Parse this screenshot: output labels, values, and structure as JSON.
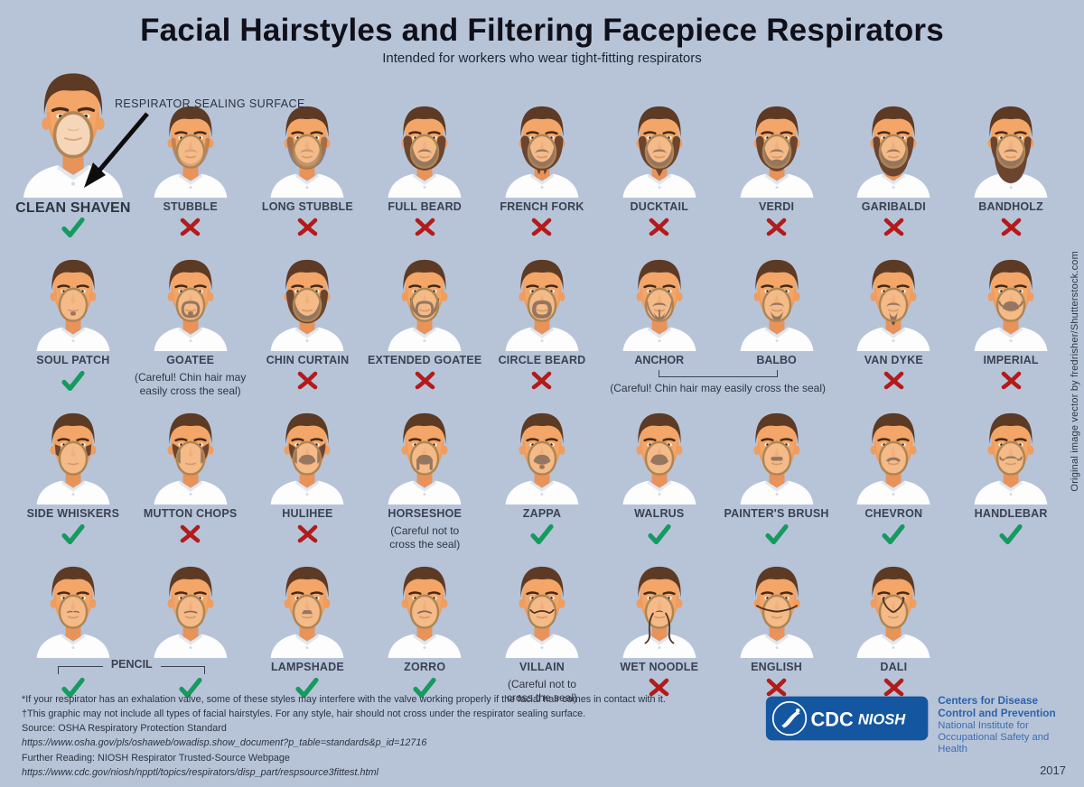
{
  "title": "Facial Hairstyles and Filtering Facepiece Respirators",
  "subtitle": "Intended for workers who wear tight-fitting respirators",
  "annotation": "RESPIRATOR SEALING SURFACE",
  "credit": "Original image vector by fredrisher/Shutterstock.com",
  "colors": {
    "background": "#b7c4d8",
    "check_green": "#169a5f",
    "x_red": "#b31b1b",
    "logo_blue": "#1457a0",
    "label_slate": "#3a4252"
  },
  "rows": [
    {
      "cells": [
        {
          "name": "CLEAN SHAVEN",
          "style": "clean",
          "mark": "yes",
          "large": true
        },
        {
          "name": "STUBBLE",
          "style": "stubble",
          "mark": "no"
        },
        {
          "name": "LONG STUBBLE",
          "style": "long-stubble",
          "mark": "no"
        },
        {
          "name": "FULL BEARD",
          "style": "full-beard",
          "mark": "no"
        },
        {
          "name": "FRENCH FORK",
          "style": "french-fork",
          "mark": "no"
        },
        {
          "name": "DUCKTAIL",
          "style": "ducktail",
          "mark": "no"
        },
        {
          "name": "VERDI",
          "style": "verdi",
          "mark": "no"
        },
        {
          "name": "GARIBALDI",
          "style": "garibaldi",
          "mark": "no"
        },
        {
          "name": "BANDHOLZ",
          "style": "bandholz",
          "mark": "no"
        }
      ]
    },
    {
      "cells": [
        {
          "name": "SOUL PATCH",
          "style": "soul-patch",
          "mark": "yes"
        },
        {
          "name": "GOATEE",
          "style": "goatee",
          "mark": "caution",
          "caution": "(Careful! Chin hair may easily cross the seal)",
          "caution_width": "mid"
        },
        {
          "name": "CHIN CURTAIN",
          "style": "chin-curtain",
          "mark": "no"
        },
        {
          "name": "EXTENDED GOATEE",
          "style": "extended-goatee",
          "mark": "no"
        },
        {
          "name": "CIRCLE BEARD",
          "style": "circle-beard",
          "mark": "no"
        },
        {
          "type": "group",
          "names": [
            "ANCHOR",
            "BALBO"
          ],
          "styles": [
            "anchor",
            "balbo"
          ],
          "caution": "(Careful! Chin hair may easily cross the seal)"
        },
        {
          "name": "VAN DYKE",
          "style": "van-dyke",
          "mark": "no"
        },
        {
          "name": "IMPERIAL",
          "style": "imperial",
          "mark": "no"
        }
      ]
    },
    {
      "cells": [
        {
          "name": "SIDE WHISKERS",
          "style": "side-whiskers",
          "mark": "yes"
        },
        {
          "name": "MUTTON CHOPS",
          "style": "mutton-chops",
          "mark": "no"
        },
        {
          "name": "HULIHEE",
          "style": "hulihee",
          "mark": "no"
        },
        {
          "name": "HORSESHOE",
          "style": "horseshoe",
          "mark": "caution",
          "caution": "(Careful not to cross the seal)",
          "caution_width": "narrow"
        },
        {
          "name": "ZAPPA",
          "style": "zappa",
          "mark": "yes"
        },
        {
          "name": "WALRUS",
          "style": "walrus",
          "mark": "yes"
        },
        {
          "name": "PAINTER'S BRUSH",
          "style": "painters-brush",
          "mark": "yes"
        },
        {
          "name": "CHEVRON",
          "style": "chevron",
          "mark": "yes"
        },
        {
          "name": "HANDLEBAR",
          "style": "handlebar",
          "mark": "yes"
        }
      ]
    },
    {
      "cells": [
        {
          "type": "group2",
          "label": "PENCIL",
          "styles": [
            "pencil-a",
            "pencil-b"
          ],
          "marks": [
            "yes",
            "yes"
          ]
        },
        {
          "name": "LAMPSHADE",
          "style": "lampshade",
          "mark": "yes"
        },
        {
          "name": "ZORRO",
          "style": "zorro",
          "mark": "yes"
        },
        {
          "name": "VILLAIN",
          "style": "villain",
          "mark": "caution",
          "caution": "(Careful not to cross the seal)",
          "caution_width": "narrow"
        },
        {
          "name": "WET NOODLE",
          "style": "wet-noodle",
          "mark": "no"
        },
        {
          "name": "ENGLISH",
          "style": "english",
          "mark": "no"
        },
        {
          "name": "DALI",
          "style": "dali",
          "mark": "no"
        },
        {
          "type": "empty"
        }
      ]
    }
  ],
  "footnotes": [
    {
      "text": "*If your respirator has an exhalation valve, some of these styles may interfere with the valve working properly if the facial hair comes in contact with it.",
      "italic": false
    },
    {
      "text": "†This graphic may not include all types of facial hairstyles. For any style, hair should not cross under the respirator sealing surface.",
      "italic": false
    },
    {
      "text": "Source: OSHA Respiratory Protection Standard",
      "italic": false
    },
    {
      "text": "https://www.osha.gov/pls/oshaweb/owadisp.show_document?p_table=standards&p_id=12716",
      "italic": true
    },
    {
      "text": "Further Reading: NIOSH Respirator Trusted-Source Webpage",
      "italic": false
    },
    {
      "text": "https://www.cdc.gov/niosh/npptl/topics/respirators/disp_part/respsource3fittest.html",
      "italic": true
    }
  ],
  "logo": {
    "cdc": "CDC",
    "niosh": "NIOSH",
    "org_bold": "Centers for Disease Control and Prevention",
    "org_regular": "National Institute for Occupational Safety and Health",
    "year": "2017"
  }
}
